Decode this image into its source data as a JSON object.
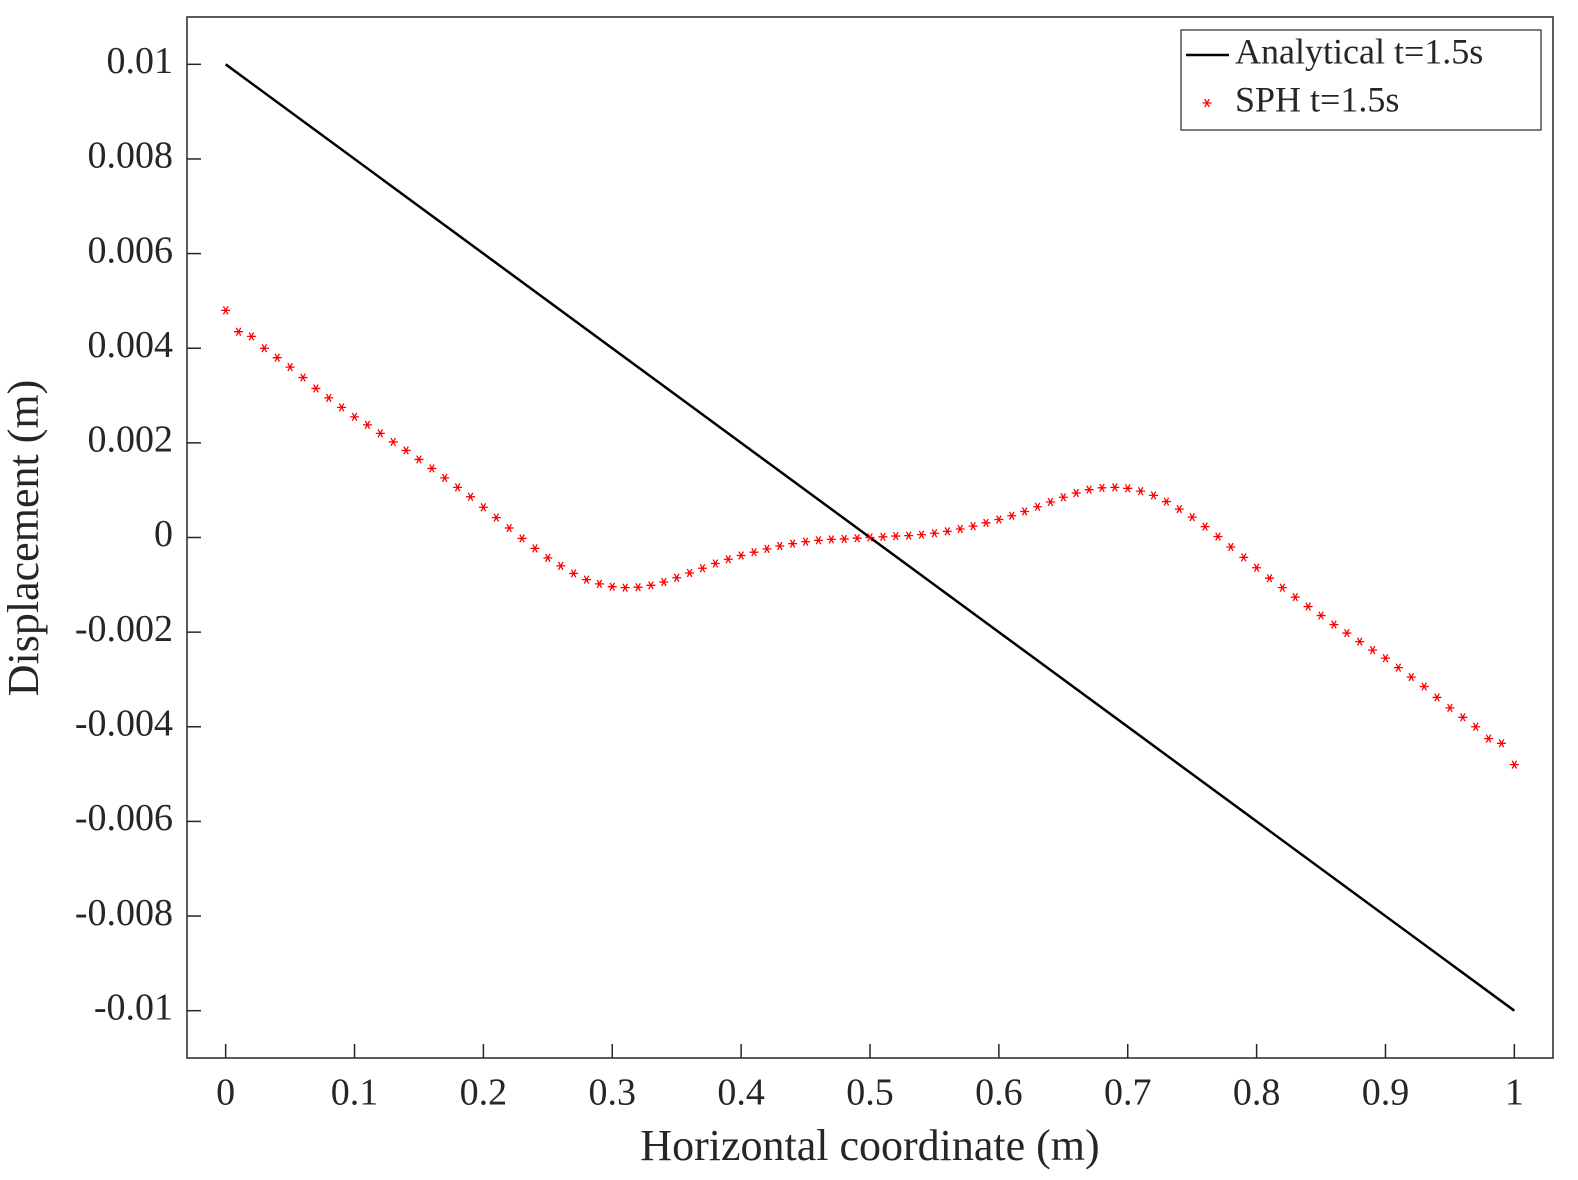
{
  "chart_data": {
    "type": "line",
    "x_label": "Horizontal coordinate (m)",
    "y_label": "Displacement (m)",
    "xlim": [
      -0.03,
      1.03
    ],
    "ylim": [
      -0.011,
      0.011
    ],
    "xticks": [
      0,
      0.1,
      0.2,
      0.3,
      0.4,
      0.5,
      0.6,
      0.7,
      0.8,
      0.9,
      1
    ],
    "yticks": [
      -0.01,
      -0.008,
      -0.006,
      -0.004,
      -0.002,
      0,
      0.002,
      0.004,
      0.006,
      0.008,
      0.01
    ],
    "legend": "upper right",
    "box": true,
    "series": [
      {
        "name": "Analytical t=1.5s",
        "color": "#000000",
        "line": true,
        "marker": null,
        "x": [
          0,
          1
        ],
        "values": [
          0.01,
          -0.01
        ]
      },
      {
        "name": "SPH t=1.5s",
        "color": "#ff0000",
        "line": false,
        "marker": "asterisk",
        "x": [
          0,
          0.01,
          0.02,
          0.03,
          0.04,
          0.05,
          0.06,
          0.07,
          0.08,
          0.09,
          0.1,
          0.11,
          0.12,
          0.13,
          0.14,
          0.15,
          0.16,
          0.17,
          0.18,
          0.19,
          0.2,
          0.21,
          0.22,
          0.23,
          0.24,
          0.25,
          0.26,
          0.27,
          0.28,
          0.29,
          0.3,
          0.31,
          0.32,
          0.33,
          0.34,
          0.35,
          0.36,
          0.37,
          0.38,
          0.39,
          0.4,
          0.41,
          0.42,
          0.43,
          0.44,
          0.45,
          0.46,
          0.47,
          0.48,
          0.49,
          0.5,
          0.51,
          0.52,
          0.53,
          0.54,
          0.55,
          0.56,
          0.57,
          0.58,
          0.59,
          0.6,
          0.61,
          0.62,
          0.63,
          0.64,
          0.65,
          0.66,
          0.67,
          0.68,
          0.69,
          0.7,
          0.71,
          0.72,
          0.73,
          0.74,
          0.75,
          0.76,
          0.77,
          0.78,
          0.79,
          0.8,
          0.81,
          0.82,
          0.83,
          0.84,
          0.85,
          0.86,
          0.87,
          0.88,
          0.89,
          0.9,
          0.91,
          0.92,
          0.93,
          0.94,
          0.95,
          0.96,
          0.97,
          0.98,
          0.99,
          1
        ],
        "values": [
          0.0048,
          0.00435,
          0.00425,
          0.004,
          0.0038,
          0.0036,
          0.00338,
          0.00315,
          0.00295,
          0.00275,
          0.00255,
          0.00238,
          0.0022,
          0.00202,
          0.00184,
          0.00165,
          0.00146,
          0.00126,
          0.00106,
          0.00086,
          0.00064,
          0.00042,
          0.0002,
          -2e-05,
          -0.00023,
          -0.00043,
          -0.0006,
          -0.00076,
          -0.00089,
          -0.00098,
          -0.00104,
          -0.00106,
          -0.00105,
          -0.00101,
          -0.00094,
          -0.00085,
          -0.00075,
          -0.00065,
          -0.00055,
          -0.00046,
          -0.00038,
          -0.00031,
          -0.00024,
          -0.00018,
          -0.00013,
          -9e-05,
          -6e-05,
          -4e-05,
          -3e-05,
          -1.5e-05,
          0,
          1.5e-05,
          3e-05,
          4e-05,
          6e-05,
          9e-05,
          0.00013,
          0.00018,
          0.00024,
          0.00031,
          0.00038,
          0.00046,
          0.00055,
          0.00065,
          0.00075,
          0.00085,
          0.00094,
          0.00101,
          0.00105,
          0.00106,
          0.00104,
          0.00098,
          0.00089,
          0.00076,
          0.0006,
          0.00043,
          0.00023,
          2e-05,
          -0.0002,
          -0.00042,
          -0.00064,
          -0.00086,
          -0.00106,
          -0.00126,
          -0.00146,
          -0.00165,
          -0.00184,
          -0.00202,
          -0.0022,
          -0.00238,
          -0.00255,
          -0.00275,
          -0.00295,
          -0.00315,
          -0.00338,
          -0.0036,
          -0.0038,
          -0.004,
          -0.00425,
          -0.00435,
          -0.0048
        ]
      }
    ]
  }
}
